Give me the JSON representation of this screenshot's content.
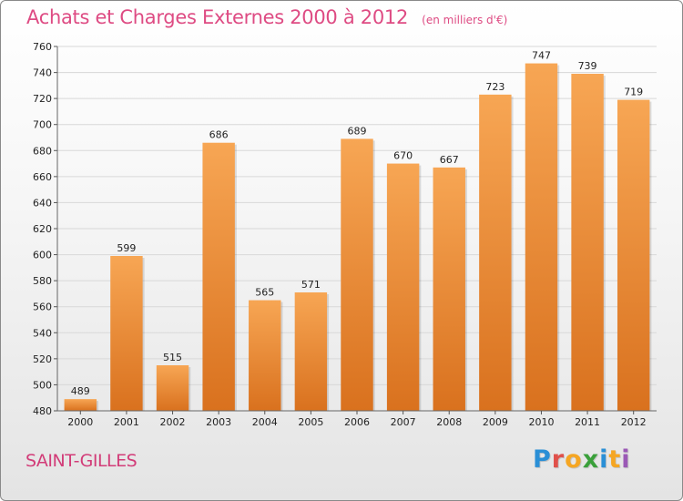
{
  "header": {
    "title": "Achats et Charges Externes 2000 à 2012",
    "subtitle": "(en milliers d'€)"
  },
  "footer": {
    "city": "SAINT-GILLES",
    "brand_letters": [
      "P",
      "r",
      "o",
      "x",
      "i",
      "t",
      "i"
    ],
    "brand_colors": [
      "#2a8fd6",
      "#e0504a",
      "#f5a623",
      "#3aa03a",
      "#2a8fd6",
      "#f5a623",
      "#9b59b6"
    ]
  },
  "colors": {
    "bar_top": "#f7a654",
    "bar_bottom": "#d9711e",
    "grid": "#d8d8d8",
    "title": "#de4b83"
  },
  "chart_data": {
    "type": "bar",
    "categories": [
      "2000",
      "2001",
      "2002",
      "2003",
      "2004",
      "2005",
      "2006",
      "2007",
      "2008",
      "2009",
      "2010",
      "2011",
      "2012"
    ],
    "values": [
      489,
      599,
      515,
      686,
      565,
      571,
      689,
      670,
      667,
      723,
      747,
      739,
      719
    ],
    "ylim": [
      480,
      760
    ],
    "yticks": [
      480,
      500,
      520,
      540,
      560,
      580,
      600,
      620,
      640,
      660,
      680,
      700,
      720,
      740,
      760
    ],
    "grid": true
  }
}
